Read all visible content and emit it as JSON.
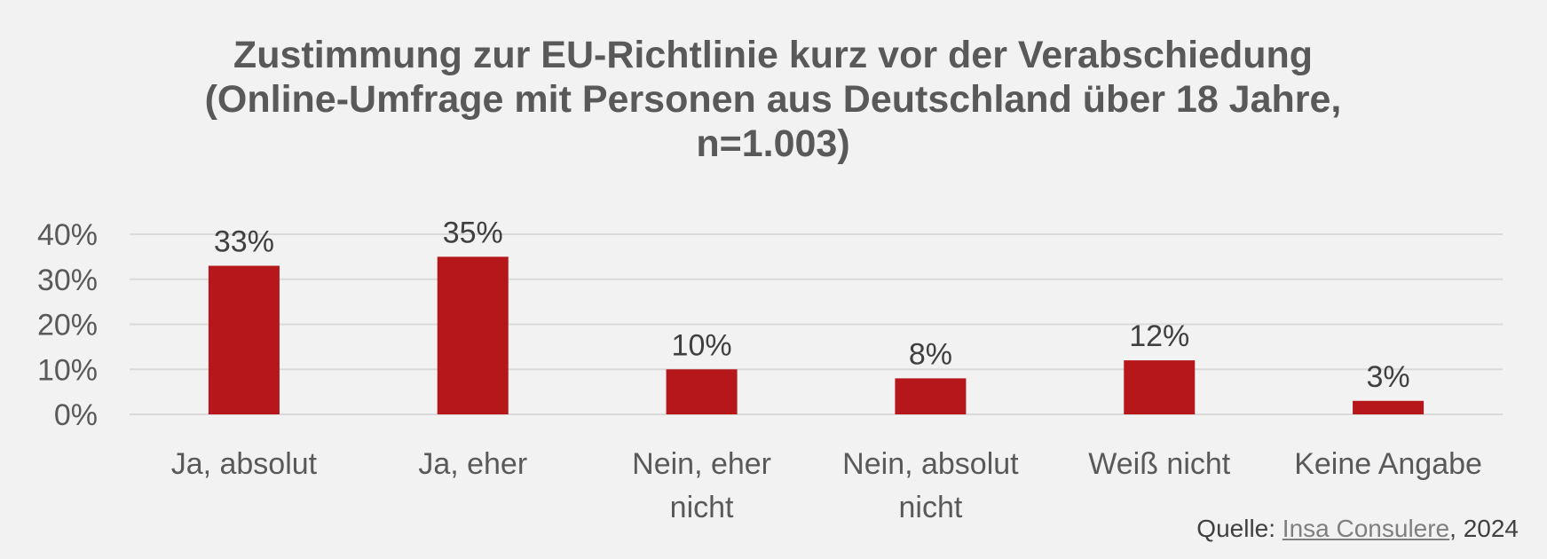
{
  "chart_data": {
    "type": "bar",
    "title_lines": [
      "Zustimmung zur EU-Richtlinie kurz vor der Verabschiedung",
      "(Online-Umfrage mit Personen aus Deutschland über 18 Jahre,",
      "n=1.003)"
    ],
    "categories": [
      [
        "Ja, absolut"
      ],
      [
        "Ja, eher"
      ],
      [
        "Nein, eher",
        "nicht"
      ],
      [
        "Nein, absolut",
        "nicht"
      ],
      [
        "Weiß nicht"
      ],
      [
        "Keine Angabe"
      ]
    ],
    "values": [
      33,
      35,
      10,
      8,
      12,
      3
    ],
    "value_labels": [
      "33%",
      "35%",
      "10%",
      "8%",
      "12%",
      "3%"
    ],
    "ylim": [
      0,
      40
    ],
    "yticks": [
      0,
      10,
      20,
      30,
      40
    ],
    "ytick_labels": [
      "0%",
      "10%",
      "20%",
      "30%",
      "40%"
    ],
    "grid": true,
    "bar_color": "#b5171a",
    "xlabel": "",
    "ylabel": ""
  },
  "source": {
    "prefix": "Quelle: ",
    "link_text": "Insa Consulere",
    "suffix": ", 2024"
  }
}
